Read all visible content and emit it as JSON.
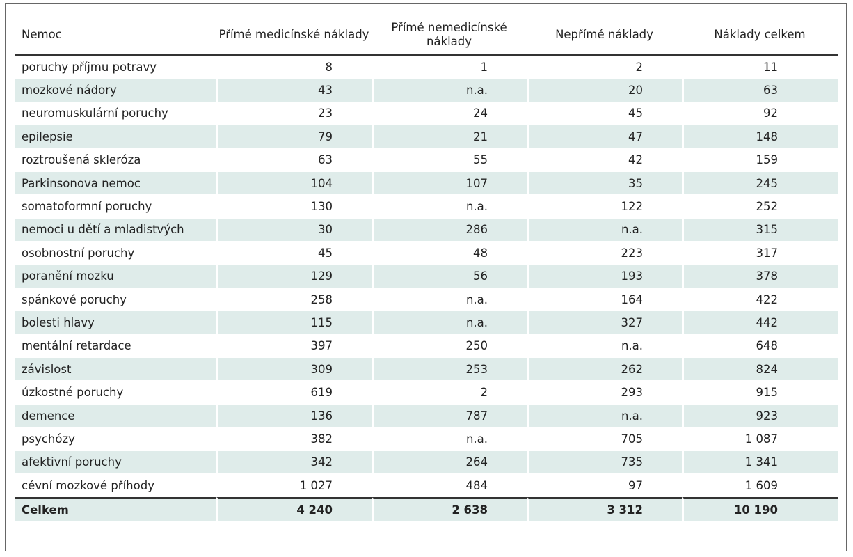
{
  "table": {
    "headers": [
      "Nemoc",
      "Přímé medicínské náklady",
      "Přímé nemedicínské náklady",
      "Nepřímé náklady",
      "Náklady celkem"
    ],
    "rows": [
      [
        "poruchy příjmu potravy",
        "8",
        "1",
        "2",
        "11"
      ],
      [
        "mozkové nádory",
        "43",
        "n.a.",
        "20",
        "63"
      ],
      [
        "neuromuskulární poruchy",
        "23",
        "24",
        "45",
        "92"
      ],
      [
        "epilepsie",
        "79",
        "21",
        "47",
        "148"
      ],
      [
        "roztroušená skleróza",
        "63",
        "55",
        "42",
        "159"
      ],
      [
        "Parkinsonova nemoc",
        "104",
        "107",
        "35",
        "245"
      ],
      [
        "somatoformní poruchy",
        "130",
        "n.a.",
        "122",
        "252"
      ],
      [
        "nemoci u dětí a mladistvých",
        "30",
        "286",
        "n.a.",
        "315"
      ],
      [
        "osobnostní poruchy",
        "45",
        "48",
        "223",
        "317"
      ],
      [
        "poranění mozku",
        "129",
        "56",
        "193",
        "378"
      ],
      [
        "spánkové poruchy",
        "258",
        "n.a.",
        "164",
        "422"
      ],
      [
        "bolesti hlavy",
        "115",
        "n.a.",
        "327",
        "442"
      ],
      [
        "mentální retardace",
        "397",
        "250",
        "n.a.",
        "648"
      ],
      [
        "závislost",
        "309",
        "253",
        "262",
        "824"
      ],
      [
        "úzkostné poruchy",
        "619",
        "2",
        "293",
        "915"
      ],
      [
        "demence",
        "136",
        "787",
        "n.a.",
        "923"
      ],
      [
        "psychózy",
        "382",
        "n.a.",
        "705",
        "1 087"
      ],
      [
        "afektivní poruchy",
        "342",
        "264",
        "735",
        "1 341"
      ],
      [
        "cévní mozkové příhody",
        "1 027",
        "484",
        "97",
        "1 609"
      ]
    ],
    "total": [
      "Celkem",
      "4 240",
      "2 638",
      "3 312",
      "10 190"
    ]
  },
  "colors": {
    "stripe": "#dfecea",
    "rule": "#333333",
    "border": "#666666"
  }
}
